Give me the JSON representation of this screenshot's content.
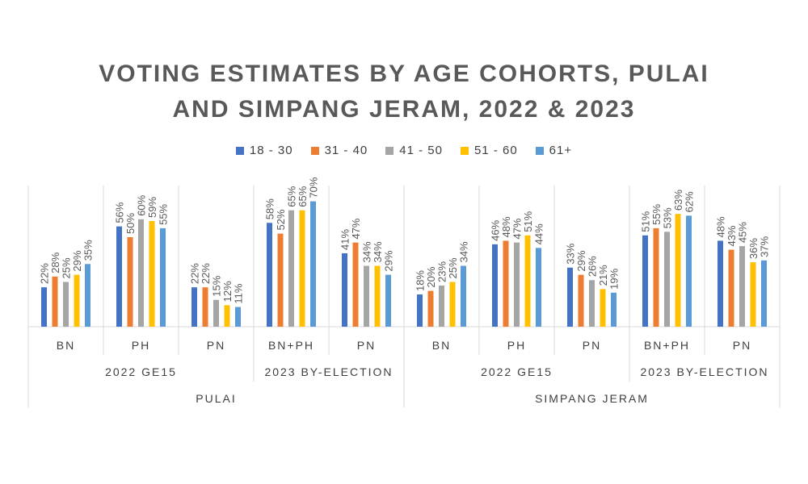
{
  "chart_data": {
    "type": "bar",
    "title_lines": [
      "VOTING ESTIMATES BY AGE COHORTS, PULAI",
      "AND SIMPANG JERAM, 2022 & 2023"
    ],
    "ylim": [
      0,
      100
    ],
    "series": [
      {
        "name": "18 - 30",
        "color": "#4472c4"
      },
      {
        "name": "31 - 40",
        "color": "#ed7d31"
      },
      {
        "name": "41 - 50",
        "color": "#a5a5a5"
      },
      {
        "name": "51 - 60",
        "color": "#ffc000"
      },
      {
        "name": "61+",
        "color": "#5b9bd5"
      }
    ],
    "groups": [
      {
        "seat": "PULAI",
        "election": "2022 GE15",
        "party": "BN",
        "values": [
          22,
          28,
          25,
          29,
          35
        ]
      },
      {
        "seat": "PULAI",
        "election": "2022 GE15",
        "party": "PH",
        "values": [
          56,
          50,
          60,
          59,
          55
        ]
      },
      {
        "seat": "PULAI",
        "election": "2022 GE15",
        "party": "PN",
        "values": [
          22,
          22,
          15,
          12,
          11
        ]
      },
      {
        "seat": "PULAI",
        "election": "2023 BY-ELECTION",
        "party": "BN+PH",
        "values": [
          58,
          52,
          65,
          65,
          70
        ]
      },
      {
        "seat": "PULAI",
        "election": "2023 BY-ELECTION",
        "party": "PN",
        "values": [
          41,
          47,
          34,
          34,
          29
        ]
      },
      {
        "seat": "SIMPANG JERAM",
        "election": "2022 GE15",
        "party": "BN",
        "values": [
          18,
          20,
          23,
          25,
          34
        ]
      },
      {
        "seat": "SIMPANG JERAM",
        "election": "2022 GE15",
        "party": "PH",
        "values": [
          46,
          48,
          47,
          51,
          44
        ]
      },
      {
        "seat": "SIMPANG JERAM",
        "election": "2022 GE15",
        "party": "PN",
        "values": [
          33,
          29,
          26,
          21,
          19
        ]
      },
      {
        "seat": "SIMPANG JERAM",
        "election": "2023 BY-ELECTION",
        "party": "BN+PH",
        "values": [
          51,
          55,
          53,
          63,
          62
        ]
      },
      {
        "seat": "SIMPANG JERAM",
        "election": "2023 BY-ELECTION",
        "party": "PN",
        "values": [
          48,
          43,
          45,
          36,
          37
        ]
      }
    ],
    "elections": [
      {
        "label": "2022 GE15",
        "seat": "PULAI",
        "groups": [
          0,
          1,
          2
        ]
      },
      {
        "label": "2023 BY-ELECTION",
        "seat": "PULAI",
        "groups": [
          3,
          4
        ]
      },
      {
        "label": "2022 GE15",
        "seat": "SIMPANG JERAM",
        "groups": [
          5,
          6,
          7
        ]
      },
      {
        "label": "2023 BY-ELECTION",
        "seat": "SIMPANG JERAM",
        "groups": [
          8,
          9
        ]
      }
    ],
    "seats": [
      {
        "label": "PULAI",
        "groups": [
          0,
          1,
          2,
          3,
          4
        ]
      },
      {
        "label": "SIMPANG JERAM",
        "groups": [
          5,
          6,
          7,
          8,
          9
        ]
      }
    ],
    "value_suffix": "%",
    "legend_position": "top",
    "grid": false
  }
}
